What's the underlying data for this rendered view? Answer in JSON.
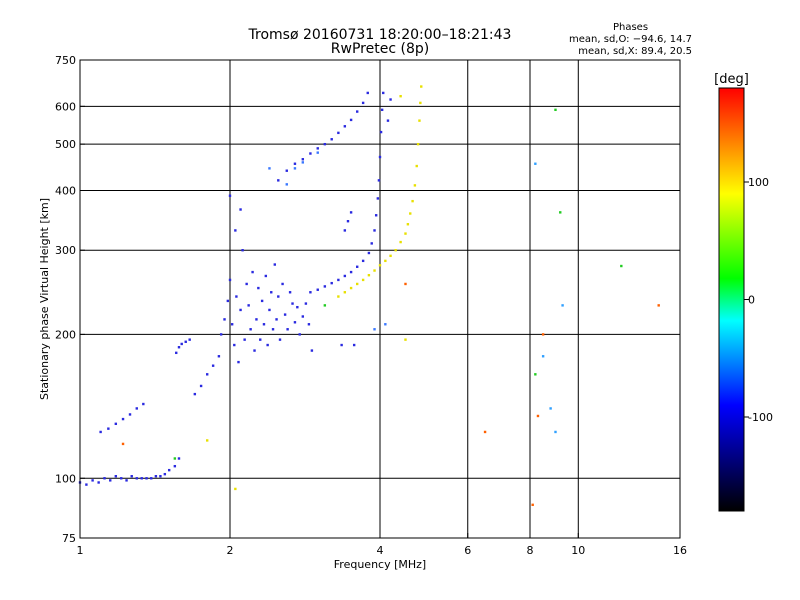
{
  "header": {
    "title_line1": "Tromsø 20160731 18:20:00–18:21:43",
    "title_line2": "RwPretec (8p)"
  },
  "phases": {
    "title": "Phases",
    "line_o": "mean, sd,O: −94.6, 14.7",
    "line_x": "mean, sd,X:  89.4, 20.5"
  },
  "chart_data": {
    "type": "scatter",
    "xlabel": "Frequency [MHz]",
    "ylabel": "Stationary phase Virtual Height [km]",
    "x_scale": "log",
    "y_scale": "log",
    "xlim": [
      1,
      16
    ],
    "ylim": [
      75,
      750
    ],
    "x_ticks": [
      {
        "value": 1,
        "label": "1"
      },
      {
        "value": 2,
        "label": "2"
      },
      {
        "value": 4,
        "label": "4"
      },
      {
        "value": 6,
        "label": "6"
      },
      {
        "value": 8,
        "label": "8"
      },
      {
        "value": 10,
        "label": "10"
      },
      {
        "value": 16,
        "label": "16"
      }
    ],
    "y_ticks": [
      {
        "value": 75,
        "label": "75"
      },
      {
        "value": 100,
        "label": "100"
      },
      {
        "value": 200,
        "label": "200"
      },
      {
        "value": 300,
        "label": "300"
      },
      {
        "value": 400,
        "label": "400"
      },
      {
        "value": 500,
        "label": "500"
      },
      {
        "value": 600,
        "label": "600"
      },
      {
        "value": 750,
        "label": "750"
      }
    ],
    "x_grid": [
      2,
      4,
      6,
      8,
      10
    ],
    "y_grid": [
      100,
      200,
      300,
      400,
      500,
      600
    ],
    "grid": true,
    "colorbar": {
      "label": "[deg]",
      "range": [
        -180,
        180
      ],
      "ticks": [
        {
          "value": 100,
          "label": "100"
        },
        {
          "value": 0,
          "label": "0"
        },
        {
          "value": -100,
          "label": "-100"
        }
      ],
      "stops": [
        {
          "pos": 0.0,
          "color": "#ff0000"
        },
        {
          "pos": 0.25,
          "color": "#ffff00"
        },
        {
          "pos": 0.45,
          "color": "#00ff00"
        },
        {
          "pos": 0.55,
          "color": "#00ffff"
        },
        {
          "pos": 0.75,
          "color": "#0000ff"
        },
        {
          "pos": 1.0,
          "color": "#000000"
        }
      ]
    },
    "series": [
      {
        "color": "#2a2ae0",
        "points": [
          [
            1.0,
            98
          ],
          [
            1.03,
            97
          ],
          [
            1.06,
            99
          ],
          [
            1.09,
            98
          ],
          [
            1.12,
            100
          ],
          [
            1.15,
            99
          ],
          [
            1.18,
            101
          ],
          [
            1.21,
            100
          ],
          [
            1.24,
            99
          ],
          [
            1.27,
            101
          ],
          [
            1.3,
            100
          ],
          [
            1.33,
            100
          ],
          [
            1.36,
            100
          ],
          [
            1.39,
            100
          ],
          [
            1.42,
            101
          ],
          [
            1.45,
            101
          ],
          [
            1.48,
            102
          ],
          [
            1.51,
            104
          ],
          [
            1.55,
            106
          ],
          [
            1.58,
            110
          ],
          [
            1.1,
            125
          ],
          [
            1.14,
            127
          ],
          [
            1.18,
            130
          ],
          [
            1.22,
            133
          ],
          [
            1.26,
            136
          ],
          [
            1.3,
            140
          ],
          [
            1.34,
            143
          ],
          [
            1.56,
            183
          ],
          [
            1.58,
            188
          ],
          [
            1.6,
            191
          ],
          [
            1.63,
            193
          ],
          [
            1.66,
            195
          ],
          [
            1.7,
            150
          ],
          [
            1.75,
            156
          ],
          [
            1.8,
            165
          ],
          [
            1.85,
            172
          ],
          [
            1.9,
            180
          ],
          [
            1.92,
            200
          ],
          [
            1.95,
            215
          ],
          [
            1.98,
            235
          ],
          [
            2.0,
            260
          ],
          [
            2.02,
            210
          ],
          [
            2.04,
            190
          ],
          [
            2.06,
            240
          ],
          [
            2.08,
            175
          ],
          [
            2.1,
            225
          ],
          [
            2.12,
            300
          ],
          [
            2.14,
            195
          ],
          [
            2.16,
            255
          ],
          [
            2.18,
            230
          ],
          [
            2.2,
            205
          ],
          [
            2.22,
            270
          ],
          [
            2.24,
            185
          ],
          [
            2.26,
            215
          ],
          [
            2.28,
            250
          ],
          [
            2.3,
            195
          ],
          [
            2.32,
            235
          ],
          [
            2.34,
            210
          ],
          [
            2.36,
            265
          ],
          [
            2.38,
            190
          ],
          [
            2.4,
            225
          ],
          [
            2.42,
            245
          ],
          [
            2.44,
            205
          ],
          [
            2.46,
            280
          ],
          [
            2.48,
            215
          ],
          [
            2.5,
            240
          ],
          [
            2.52,
            195
          ],
          [
            2.55,
            255
          ],
          [
            2.58,
            220
          ],
          [
            2.61,
            205
          ],
          [
            2.64,
            245
          ],
          [
            2.67,
            232
          ],
          [
            2.7,
            212
          ],
          [
            2.73,
            228
          ],
          [
            2.76,
            200
          ],
          [
            2.8,
            218
          ],
          [
            2.84,
            232
          ],
          [
            2.88,
            210
          ],
          [
            2.92,
            185
          ],
          [
            2.05,
            330
          ],
          [
            2.1,
            365
          ],
          [
            2.0,
            390
          ],
          [
            2.9,
            245
          ],
          [
            3.0,
            248
          ],
          [
            3.1,
            252
          ],
          [
            3.2,
            256
          ],
          [
            3.3,
            260
          ],
          [
            3.4,
            265
          ],
          [
            3.5,
            270
          ],
          [
            3.6,
            277
          ],
          [
            3.7,
            285
          ],
          [
            3.8,
            296
          ],
          [
            3.85,
            310
          ],
          [
            3.9,
            330
          ],
          [
            3.93,
            355
          ],
          [
            3.96,
            385
          ],
          [
            3.98,
            420
          ],
          [
            4.0,
            470
          ],
          [
            4.02,
            530
          ],
          [
            4.04,
            590
          ],
          [
            4.06,
            640
          ],
          [
            2.5,
            420
          ],
          [
            2.6,
            440
          ],
          [
            2.7,
            455
          ],
          [
            2.8,
            465
          ],
          [
            2.9,
            478
          ],
          [
            3.0,
            490
          ],
          [
            3.1,
            500
          ],
          [
            3.2,
            512
          ],
          [
            3.3,
            528
          ],
          [
            3.4,
            545
          ],
          [
            3.5,
            562
          ],
          [
            3.6,
            585
          ],
          [
            3.7,
            610
          ],
          [
            3.78,
            640
          ],
          [
            3.4,
            330
          ],
          [
            3.45,
            345
          ],
          [
            3.5,
            360
          ],
          [
            3.35,
            190
          ],
          [
            3.55,
            190
          ],
          [
            4.15,
            560
          ],
          [
            4.2,
            620
          ]
        ]
      },
      {
        "color": "#3a78ff",
        "points": [
          [
            2.4,
            445
          ],
          [
            2.6,
            412
          ],
          [
            2.8,
            458
          ],
          [
            2.7,
            445
          ],
          [
            3.0,
            480
          ],
          [
            3.9,
            205
          ],
          [
            4.1,
            210
          ]
        ]
      },
      {
        "color": "#e8e000",
        "points": [
          [
            3.3,
            240
          ],
          [
            3.4,
            245
          ],
          [
            3.5,
            250
          ],
          [
            3.6,
            255
          ],
          [
            3.7,
            260
          ],
          [
            3.8,
            266
          ],
          [
            3.9,
            272
          ],
          [
            4.0,
            279
          ],
          [
            4.1,
            285
          ],
          [
            4.2,
            292
          ],
          [
            4.3,
            300
          ],
          [
            4.4,
            312
          ],
          [
            4.5,
            325
          ],
          [
            4.55,
            340
          ],
          [
            4.6,
            358
          ],
          [
            4.65,
            380
          ],
          [
            4.7,
            410
          ],
          [
            4.74,
            450
          ],
          [
            4.77,
            500
          ],
          [
            4.8,
            560
          ],
          [
            4.82,
            610
          ],
          [
            4.84,
            660
          ],
          [
            4.4,
            630
          ],
          [
            4.5,
            195
          ],
          [
            1.8,
            120
          ],
          [
            2.05,
            95
          ]
        ]
      },
      {
        "color": "#22cc22",
        "points": [
          [
            1.55,
            110
          ],
          [
            3.1,
            230
          ],
          [
            9.0,
            590
          ],
          [
            9.2,
            360
          ],
          [
            12.2,
            278
          ],
          [
            8.2,
            165
          ]
        ]
      },
      {
        "color": "#ff6000",
        "points": [
          [
            1.22,
            118
          ],
          [
            4.5,
            255
          ],
          [
            6.5,
            125
          ],
          [
            8.1,
            88
          ],
          [
            8.3,
            135
          ],
          [
            8.5,
            200
          ],
          [
            14.5,
            230
          ]
        ]
      },
      {
        "color": "#30a0ff",
        "points": [
          [
            8.2,
            455
          ],
          [
            8.5,
            180
          ],
          [
            8.8,
            140
          ],
          [
            9.0,
            125
          ],
          [
            9.3,
            230
          ]
        ]
      }
    ]
  }
}
